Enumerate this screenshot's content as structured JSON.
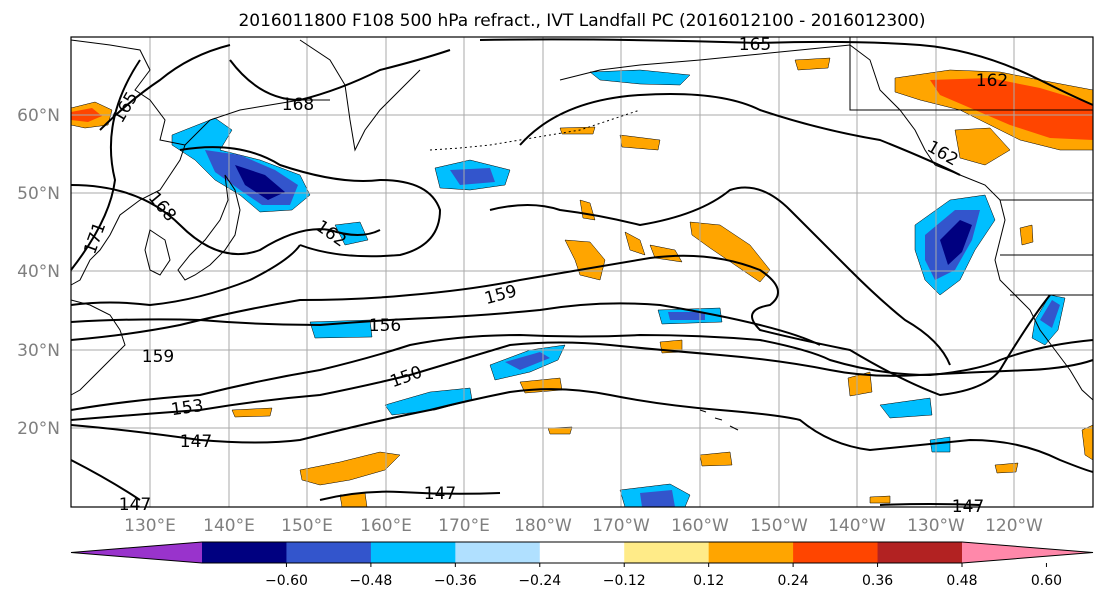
{
  "title": "2016011800 F108 500 hPa refract., IVT Landfall PC (2016012100 - 2016012300)",
  "lat_labels": [
    "60°N",
    "50°N",
    "40°N",
    "30°N",
    "20°N"
  ],
  "lon_labels": [
    "130°E",
    "140°E",
    "150°E",
    "160°E",
    "170°E",
    "180°W",
    "170°W",
    "160°W",
    "150°W",
    "140°W",
    "130°W",
    "120°W"
  ],
  "contour_labels": [
    "165",
    "168",
    "171",
    "168",
    "162",
    "159",
    "156",
    "159",
    "153",
    "150",
    "147",
    "147",
    "147",
    "147",
    "165",
    "162",
    "162"
  ],
  "colorbar": {
    "colors": [
      "#9933cc",
      "#000080",
      "#3355cc",
      "#00bfff",
      "#b0e0ff",
      "#ffffff",
      "#ffeb88",
      "#ffa500",
      "#ff4500",
      "#b22222",
      "#ff88aa"
    ],
    "ticks": [
      "−0.60",
      "−0.48",
      "−0.36",
      "−0.24",
      "−0.12",
      "0.12",
      "0.24",
      "0.36",
      "0.48",
      "0.60"
    ]
  },
  "colors": {
    "land": "#000000",
    "grid": "#aaaaaa",
    "contour": "#000000"
  }
}
